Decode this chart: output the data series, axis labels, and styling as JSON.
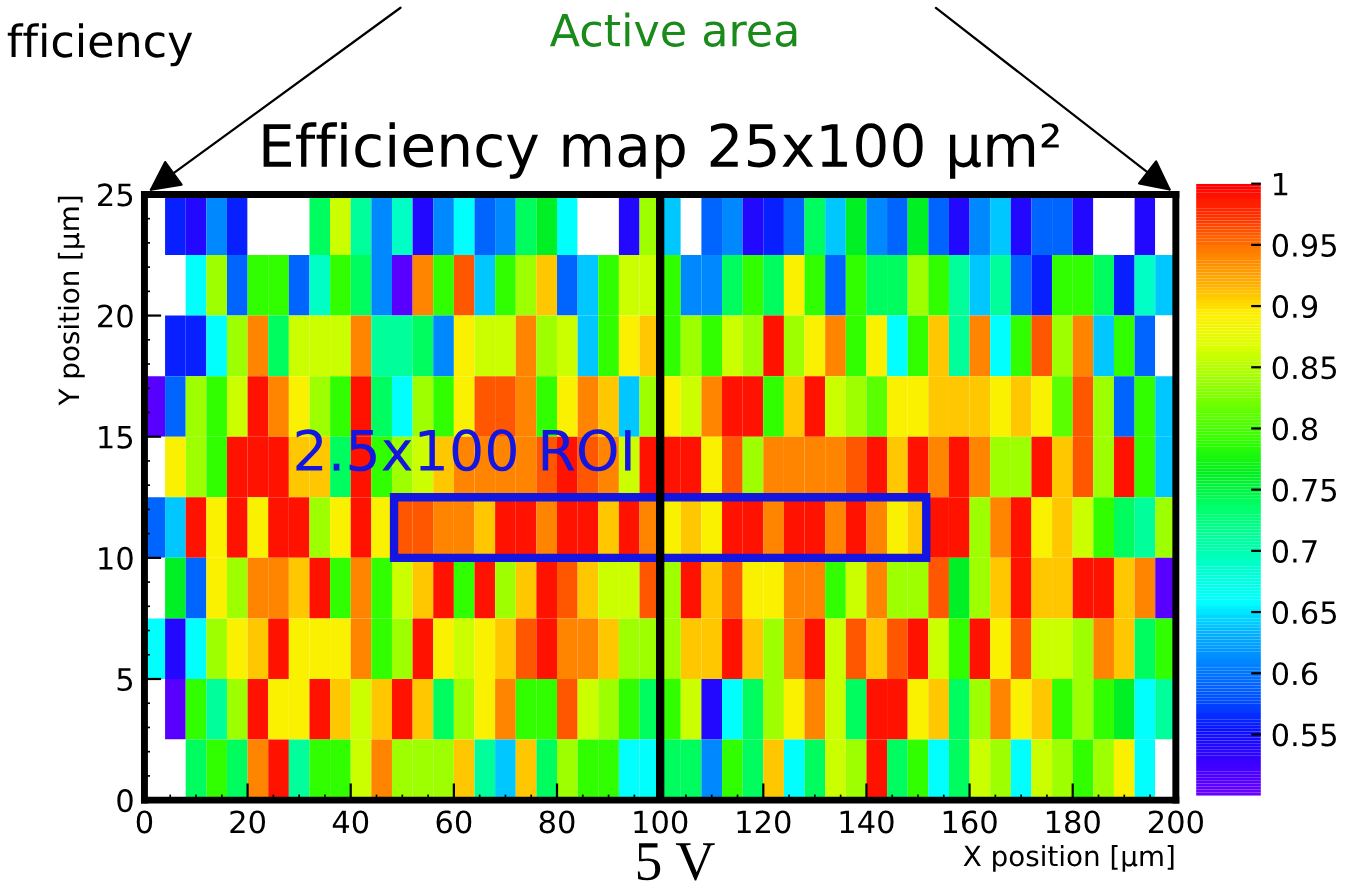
{
  "chart_data": {
    "type": "heatmap",
    "title": "Efficiency map 25x100 µm²",
    "xlabel": "X position [µm]",
    "ylabel": "Y position [µm]",
    "xlim": [
      0,
      200
    ],
    "ylim": [
      0,
      25
    ],
    "xticks": [
      0,
      20,
      40,
      60,
      80,
      100,
      120,
      140,
      160,
      180,
      200
    ],
    "yticks": [
      0,
      5,
      10,
      15,
      20,
      25
    ],
    "clim": [
      0.5,
      1
    ],
    "cticks": [
      0.55,
      0.6,
      0.65,
      0.7,
      0.75,
      0.8,
      0.85,
      0.9,
      0.95,
      1
    ],
    "grid": false,
    "ref_lines": [
      {
        "axis": "x",
        "value": 100,
        "label": null,
        "color": "#000000"
      }
    ],
    "annotations": [
      "2.5x100 ROI",
      "Active area",
      "fficiency",
      "5 V"
    ],
    "cells": [
      [
        null,
        0.56,
        0.54,
        0.61,
        0.56,
        null,
        null,
        null,
        0.74,
        0.86,
        0.71,
        0.61,
        0.69,
        0.54,
        0.61,
        0.66,
        0.59,
        0.61,
        0.74,
        0.76,
        0.66,
        null,
        null,
        0.54,
        0.84,
        0.64,
        null,
        0.59,
        0.61,
        0.54,
        0.56,
        0.59,
        0.74,
        0.64,
        0.76,
        0.61,
        0.59,
        0.76,
        0.59,
        0.54,
        0.61,
        0.64,
        0.54,
        0.59,
        0.59,
        0.54,
        null,
        null,
        0.54,
        null
      ],
      [
        null,
        null,
        0.66,
        0.84,
        0.59,
        0.79,
        0.79,
        0.59,
        0.69,
        0.79,
        0.74,
        0.61,
        0.51,
        0.94,
        0.79,
        0.96,
        0.64,
        0.79,
        0.84,
        0.91,
        0.59,
        0.64,
        0.79,
        0.86,
        0.86,
        0.79,
        0.61,
        0.61,
        0.74,
        0.79,
        0.74,
        0.89,
        0.79,
        0.59,
        0.79,
        0.74,
        0.74,
        0.84,
        0.79,
        0.71,
        0.64,
        0.71,
        0.59,
        0.56,
        0.79,
        0.79,
        0.74,
        0.56,
        0.69,
        0.64
      ],
      [
        null,
        0.56,
        0.56,
        0.66,
        0.84,
        0.94,
        0.74,
        0.86,
        0.86,
        0.86,
        0.94,
        0.71,
        0.71,
        0.74,
        0.61,
        0.89,
        0.86,
        0.86,
        0.94,
        0.84,
        0.86,
        0.64,
        0.79,
        0.89,
        0.91,
        0.79,
        0.84,
        0.79,
        0.86,
        0.84,
        0.99,
        0.84,
        0.89,
        0.94,
        0.79,
        0.89,
        0.66,
        0.79,
        0.91,
        0.71,
        0.94,
        0.66,
        0.79,
        0.96,
        0.84,
        0.94,
        0.64,
        0.79,
        0.59,
        null
      ],
      [
        0.51,
        0.59,
        0.84,
        0.79,
        0.86,
        0.99,
        0.94,
        0.89,
        0.84,
        0.79,
        0.99,
        0.74,
        0.66,
        0.84,
        0.79,
        0.89,
        0.96,
        0.96,
        0.94,
        0.79,
        0.89,
        0.94,
        0.91,
        0.64,
        0.84,
        0.89,
        0.86,
        0.94,
        0.99,
        0.99,
        0.79,
        0.91,
        0.99,
        0.86,
        0.84,
        0.81,
        0.89,
        0.89,
        0.91,
        0.91,
        0.91,
        0.89,
        0.91,
        0.89,
        0.81,
        0.96,
        0.84,
        0.59,
        0.79,
        0.64
      ],
      [
        null,
        0.89,
        0.84,
        0.79,
        0.99,
        0.99,
        0.99,
        0.91,
        0.91,
        0.74,
        0.99,
        0.79,
        0.84,
        0.86,
        0.91,
        0.94,
        0.94,
        0.94,
        0.94,
        0.96,
        0.99,
        0.96,
        0.94,
        0.86,
        0.99,
        0.99,
        0.99,
        0.89,
        0.96,
        0.84,
        0.94,
        0.94,
        0.94,
        0.94,
        0.96,
        0.99,
        0.91,
        0.99,
        0.94,
        0.99,
        0.94,
        0.84,
        0.84,
        0.99,
        0.91,
        0.96,
        0.84,
        0.99,
        0.79,
        0.64
      ],
      [
        0.59,
        0.64,
        0.99,
        0.89,
        0.99,
        0.89,
        0.99,
        0.99,
        0.84,
        0.89,
        0.99,
        0.89,
        0.96,
        0.96,
        0.94,
        0.94,
        0.91,
        0.99,
        0.99,
        0.94,
        0.99,
        0.99,
        0.91,
        0.99,
        0.94,
        0.89,
        0.91,
        0.89,
        0.99,
        0.99,
        0.94,
        0.99,
        0.99,
        0.94,
        0.99,
        0.94,
        0.89,
        0.91,
        0.99,
        0.99,
        0.84,
        0.94,
        0.99,
        0.89,
        0.91,
        0.86,
        0.79,
        0.74,
        0.71,
        0.84
      ],
      [
        null,
        0.76,
        0.59,
        0.89,
        0.84,
        0.94,
        0.94,
        0.91,
        0.99,
        0.79,
        0.94,
        0.79,
        0.86,
        0.91,
        0.99,
        0.79,
        0.99,
        0.84,
        0.91,
        0.99,
        0.96,
        0.91,
        0.86,
        0.86,
        0.96,
        0.84,
        0.99,
        0.91,
        0.96,
        0.89,
        0.89,
        0.94,
        0.94,
        0.79,
        0.86,
        0.94,
        0.84,
        0.84,
        0.96,
        0.76,
        0.84,
        0.91,
        0.99,
        0.91,
        0.91,
        0.99,
        0.99,
        0.91,
        0.94,
        0.51
      ],
      [
        0.66,
        0.54,
        0.66,
        0.84,
        0.89,
        0.91,
        0.99,
        0.89,
        0.89,
        0.89,
        0.94,
        0.79,
        0.84,
        0.99,
        0.89,
        0.86,
        0.89,
        0.91,
        0.96,
        0.99,
        0.94,
        0.94,
        0.91,
        0.84,
        0.84,
        0.84,
        0.91,
        0.91,
        0.99,
        0.91,
        0.84,
        0.94,
        0.99,
        0.86,
        0.96,
        0.91,
        0.96,
        0.99,
        0.86,
        0.79,
        0.99,
        0.89,
        0.96,
        0.86,
        0.86,
        0.84,
        0.94,
        0.91,
        0.74,
        0.79
      ],
      [
        null,
        0.51,
        0.79,
        0.71,
        0.84,
        0.99,
        0.89,
        0.89,
        0.99,
        0.91,
        0.86,
        0.91,
        0.99,
        0.91,
        0.74,
        0.84,
        0.89,
        0.94,
        0.79,
        0.79,
        0.96,
        0.86,
        0.84,
        0.79,
        0.74,
        0.79,
        0.86,
        0.54,
        0.66,
        0.74,
        0.84,
        0.89,
        0.94,
        0.86,
        0.74,
        0.99,
        0.99,
        0.89,
        0.91,
        0.74,
        0.84,
        0.94,
        0.89,
        0.91,
        0.79,
        0.84,
        0.79,
        0.76,
        0.66,
        0.71
      ],
      [
        null,
        null,
        0.74,
        0.79,
        0.74,
        0.94,
        0.99,
        0.71,
        0.79,
        0.79,
        0.86,
        0.94,
        0.84,
        0.84,
        0.84,
        0.91,
        0.71,
        0.64,
        0.91,
        0.74,
        0.84,
        0.79,
        0.79,
        0.66,
        0.66,
        0.74,
        0.74,
        0.61,
        0.79,
        0.74,
        0.91,
        0.66,
        0.74,
        0.86,
        0.84,
        0.99,
        0.74,
        0.79,
        0.66,
        0.74,
        0.86,
        0.84,
        0.66,
        0.86,
        0.84,
        0.79,
        0.84,
        0.89,
        0.66,
        null
      ]
    ]
  }
}
